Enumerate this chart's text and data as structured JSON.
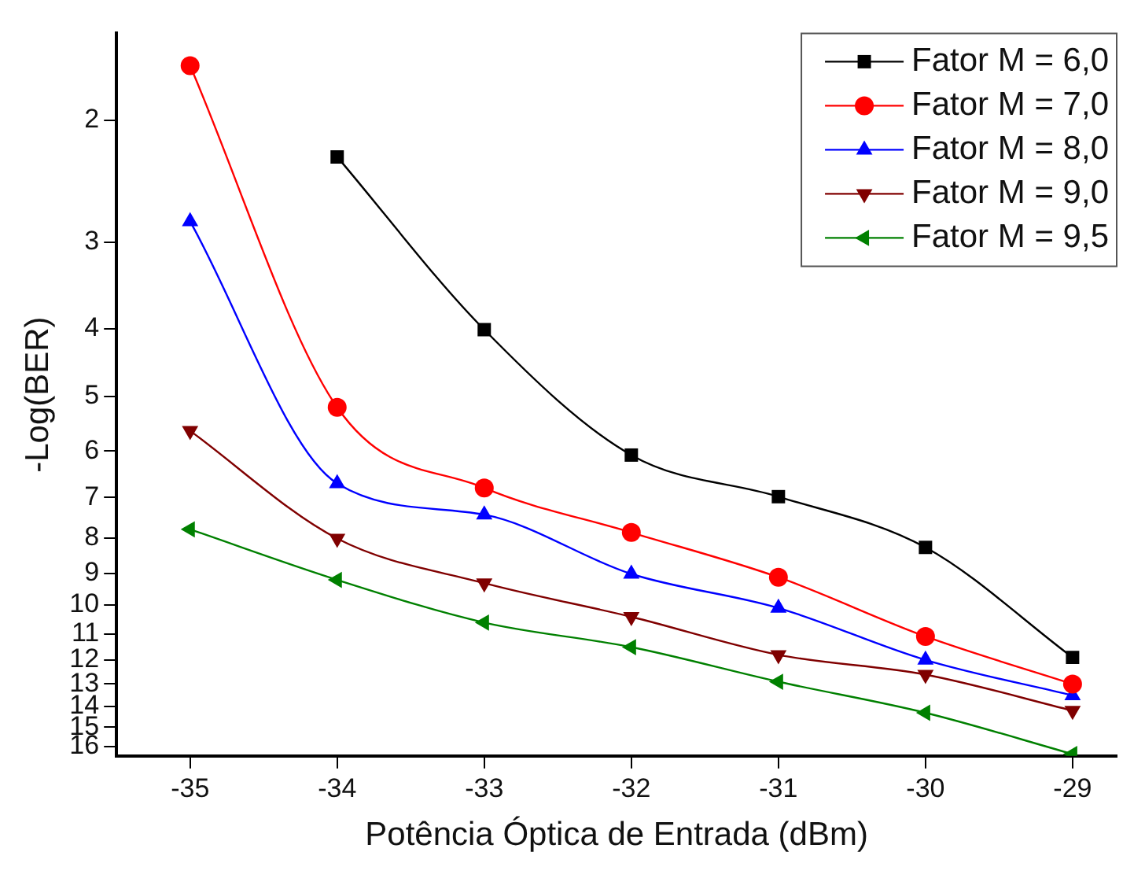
{
  "chart_data": {
    "type": "line",
    "xlabel": "Potência Óptica de Entrada (dBm)",
    "ylabel": "-Log(BER)",
    "x": [
      -35,
      -34,
      -33,
      -32,
      -31,
      -30,
      -29
    ],
    "xlim": [
      -35.5,
      -28.7
    ],
    "xticks": [
      -35,
      -34,
      -33,
      -32,
      -31,
      -30,
      -29
    ],
    "ylim": [
      16.5,
      1.5
    ],
    "yticks": [
      2,
      3,
      4,
      5,
      6,
      7,
      8,
      9,
      10,
      11,
      12,
      13,
      14,
      15,
      16
    ],
    "log": "y",
    "grid": false,
    "legend": "top right",
    "series": [
      {
        "name": "Fator M = 6,0",
        "color": "#000000",
        "marker": "square",
        "values": [
          null,
          2.26,
          4.01,
          6.08,
          6.98,
          8.26,
          11.9
        ]
      },
      {
        "name": "Fator M = 7,0",
        "color": "#ff0000",
        "marker": "circle",
        "values": [
          1.67,
          5.19,
          6.78,
          7.86,
          9.12,
          11.1,
          13.0
        ]
      },
      {
        "name": "Fator M = 8,0",
        "color": "#0000ff",
        "marker": "triangle",
        "values": [
          2.8,
          6.68,
          7.41,
          9.02,
          10.1,
          12.0,
          13.5
        ]
      },
      {
        "name": "Fator M = 9,0",
        "color": "#800000",
        "marker": "triangle-down",
        "values": [
          5.61,
          8.02,
          9.3,
          10.4,
          11.8,
          12.6,
          14.2
        ]
      },
      {
        "name": "Fator M = 9,5",
        "color": "#008000",
        "marker": "triangle-left",
        "values": [
          7.78,
          9.2,
          10.6,
          11.5,
          12.9,
          14.3,
          16.4
        ]
      }
    ]
  }
}
